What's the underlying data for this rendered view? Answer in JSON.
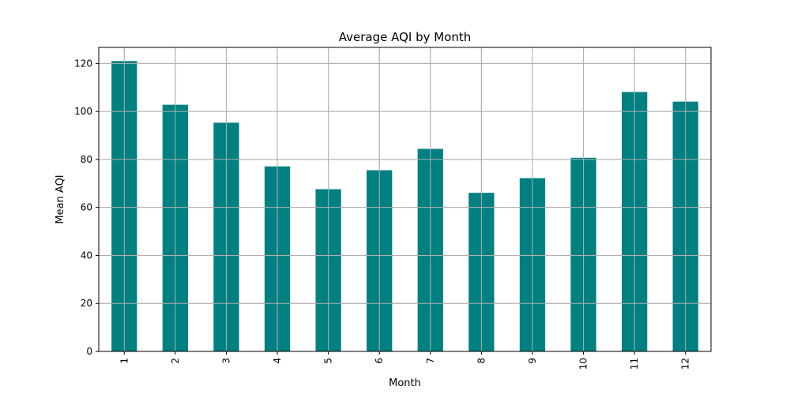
{
  "chart_data": {
    "type": "bar",
    "title": "Average AQI by Month",
    "xlabel": "Month",
    "ylabel": "Mean AQI",
    "categories": [
      "1",
      "2",
      "3",
      "4",
      "5",
      "6",
      "7",
      "8",
      "9",
      "10",
      "11",
      "12"
    ],
    "values": [
      121,
      102.8,
      95.3,
      77.1,
      67.6,
      75.5,
      84.4,
      66.1,
      72.2,
      80.7,
      108.1,
      104.1
    ],
    "ylim": [
      0,
      126.7
    ],
    "yticks": [
      "0",
      "20",
      "40",
      "60",
      "80",
      "100",
      "120"
    ],
    "grid": true,
    "legend": "none",
    "bar_color": "#008080",
    "grid_color": "#b0b0b0",
    "x_tick_rotation": "vertical"
  }
}
